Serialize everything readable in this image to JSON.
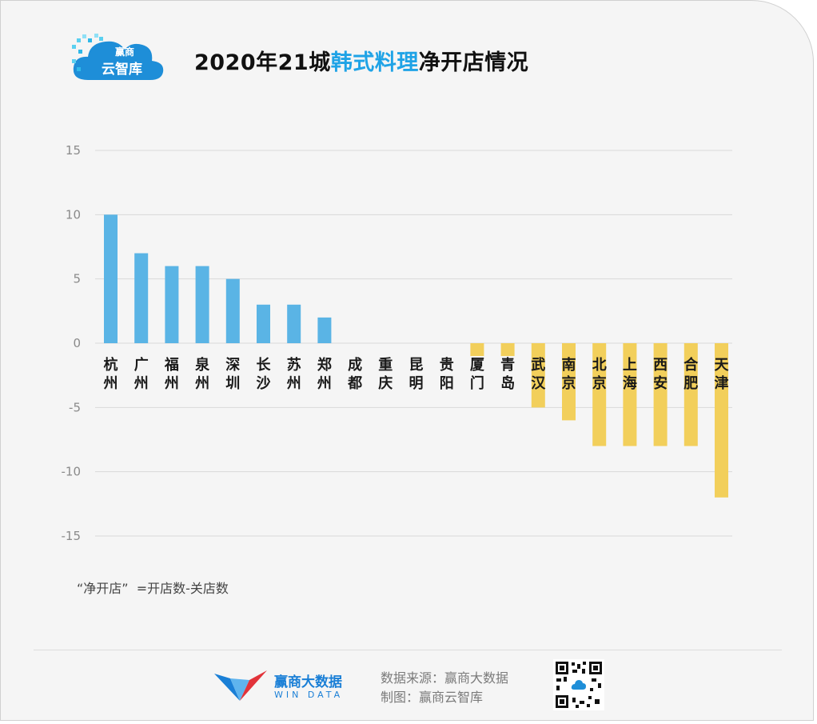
{
  "header": {
    "logo_line1": "赢商",
    "logo_line2": "云智库",
    "title_prefix": "2020年21城",
    "title_highlight": "韩式料理",
    "title_suffix": "净开店情况"
  },
  "colors": {
    "positive": "#5ab4e5",
    "negative": "#f2cf5b",
    "highlight": "#1fa3e6",
    "grid": "#d9d9d9"
  },
  "chart_data": {
    "type": "bar",
    "categories": [
      "杭州",
      "广州",
      "福州",
      "泉州",
      "深圳",
      "长沙",
      "苏州",
      "郑州",
      "成都",
      "重庆",
      "昆明",
      "贵阳",
      "厦门",
      "青岛",
      "武汉",
      "南京",
      "北京",
      "上海",
      "西安",
      "合肥",
      "天津"
    ],
    "values": [
      10,
      7,
      6,
      6,
      5,
      3,
      3,
      2,
      0,
      0,
      0,
      0,
      -1,
      -1,
      -5,
      -6,
      -8,
      -8,
      -8,
      -8,
      -12
    ],
    "ylim": [
      -15,
      15
    ],
    "yticks": [
      15,
      10,
      5,
      0,
      -5,
      -10,
      -15
    ],
    "ytick_labels": [
      "15",
      "10",
      "5",
      "0",
      "-5",
      "-10",
      "-15"
    ],
    "grid": true,
    "legend": "none"
  },
  "footnote": "“净开店”  =开店数-关店数",
  "footer": {
    "brand_cn": "赢商大数据",
    "brand_en": "WIN DATA",
    "source_line1": "数据来源：赢商大数据",
    "source_line2": "制图：赢商云智库",
    "qr_icon": "qr-code-icon"
  }
}
